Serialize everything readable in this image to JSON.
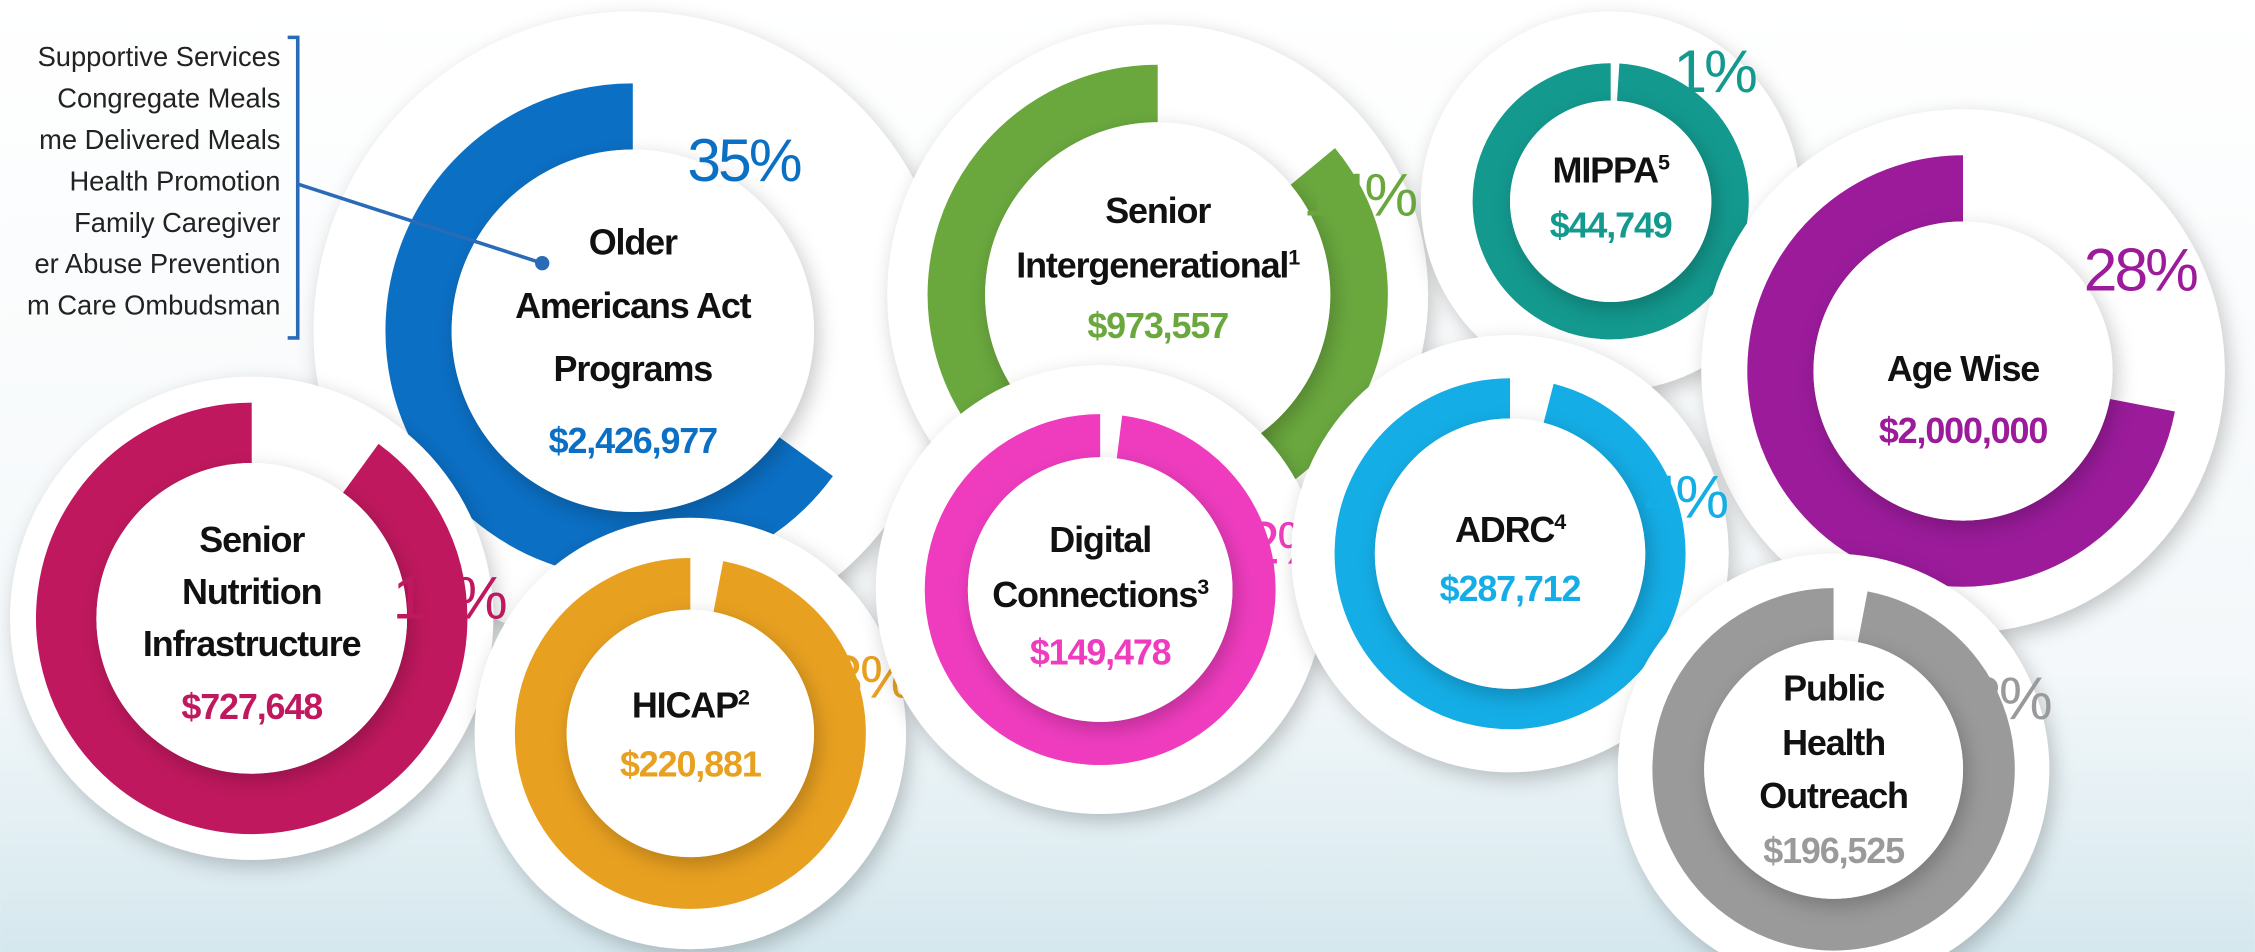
{
  "program_list": [
    "Supportive Services",
    "Congregate Meals",
    "me Delivered Meals",
    "Health Promotion",
    "Family Caregiver",
    "er Abuse Prevention",
    "m Care Ombudsman"
  ],
  "donuts": [
    {
      "name_lines": [
        "Older",
        "Americans Act",
        "Programs"
      ],
      "note": null,
      "amount": "$2,426,977",
      "percent": 35,
      "percent_label": "35%",
      "color": "#0b6fc4"
    },
    {
      "name_lines": [
        "Senior",
        "Intergenerational"
      ],
      "note": "1",
      "amount": "$973,557",
      "percent": 14,
      "percent_label": "14%",
      "color": "#6aa83e"
    },
    {
      "name_lines": [
        "MIPPA"
      ],
      "note": "5",
      "amount": "$44,749",
      "percent": 1,
      "percent_label": "1%",
      "color": "#13998e"
    },
    {
      "name_lines": [
        "Age Wise"
      ],
      "note": null,
      "amount": "$2,000,000",
      "percent": 28,
      "percent_label": "28%",
      "color": "#9b1b9b"
    },
    {
      "name_lines": [
        "Senior",
        "Nutrition",
        "Infrastructure"
      ],
      "note": null,
      "amount": "$727,648",
      "percent": 10,
      "percent_label": "10%",
      "color": "#c0185e"
    },
    {
      "name_lines": [
        "HICAP"
      ],
      "note": "2",
      "amount": "$220,881",
      "percent": 3,
      "percent_label": "3%",
      "color": "#e8a020"
    },
    {
      "name_lines": [
        "Digital",
        "Connections"
      ],
      "note": "3",
      "amount": "$149,478",
      "percent": 2,
      "percent_label": "2%",
      "color": "#ef3cbf"
    },
    {
      "name_lines": [
        "ADRC"
      ],
      "note": "4",
      "amount": "$287,712",
      "percent": 4,
      "percent_label": "4%",
      "color": "#14ade6"
    },
    {
      "name_lines": [
        "Public",
        "Health",
        "Outreach"
      ],
      "note": null,
      "amount": "$196,525",
      "percent": 3,
      "percent_label": "3%",
      "color": "#9a9a9a"
    }
  ]
}
